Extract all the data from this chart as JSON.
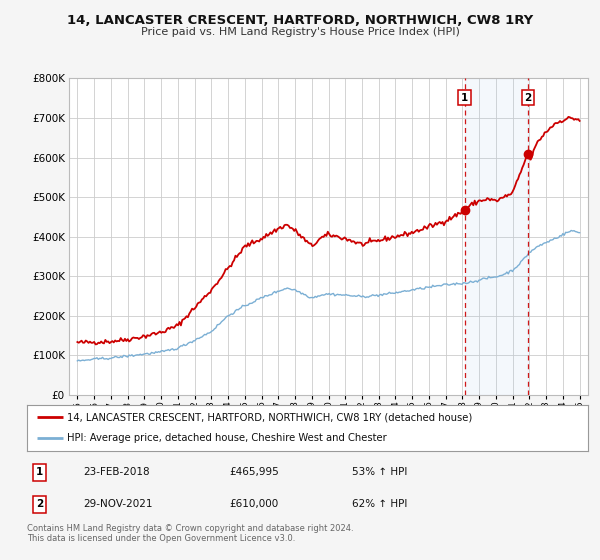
{
  "title": "14, LANCASTER CRESCENT, HARTFORD, NORTHWICH, CW8 1RY",
  "subtitle": "Price paid vs. HM Land Registry's House Price Index (HPI)",
  "background_color": "#f5f5f5",
  "plot_bg_color": "#ffffff",
  "grid_color": "#cccccc",
  "red_line_color": "#cc0000",
  "blue_line_color": "#7bafd4",
  "marker1_x": 2018.13,
  "marker1_y": 465995,
  "marker2_x": 2021.91,
  "marker2_y": 610000,
  "vline1_x": 2018.13,
  "vline2_x": 2021.91,
  "annotation1": [
    "1",
    "23-FEB-2018",
    "£465,995",
    "53% ↑ HPI"
  ],
  "annotation2": [
    "2",
    "29-NOV-2021",
    "£610,000",
    "62% ↑ HPI"
  ],
  "footer": "Contains HM Land Registry data © Crown copyright and database right 2024.\nThis data is licensed under the Open Government Licence v3.0.",
  "legend1": "14, LANCASTER CRESCENT, HARTFORD, NORTHWICH, CW8 1RY (detached house)",
  "legend2": "HPI: Average price, detached house, Cheshire West and Chester",
  "ylim": [
    0,
    800000
  ],
  "yticks": [
    0,
    100000,
    200000,
    300000,
    400000,
    500000,
    600000,
    700000,
    800000
  ],
  "xlim": [
    1994.5,
    2025.5
  ],
  "xticks": [
    1995,
    1996,
    1997,
    1998,
    1999,
    2000,
    2001,
    2002,
    2003,
    2004,
    2005,
    2006,
    2007,
    2008,
    2009,
    2010,
    2011,
    2012,
    2013,
    2014,
    2015,
    2016,
    2017,
    2018,
    2019,
    2020,
    2021,
    2022,
    2023,
    2024,
    2025
  ]
}
